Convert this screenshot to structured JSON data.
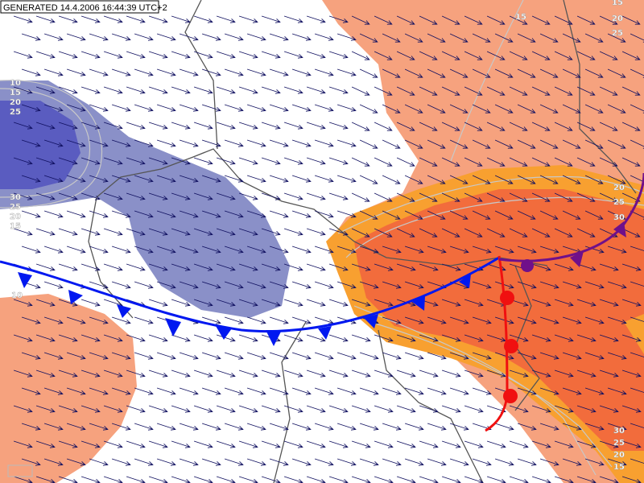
{
  "header": {
    "text": "GENERATED 14.4.2006 16:44:39 UTC+2"
  },
  "contour_labels": [
    15,
    20,
    25,
    15,
    10,
    15,
    20,
    25,
    30,
    25,
    20,
    15,
    10,
    20,
    25,
    30,
    30,
    25,
    20,
    15
  ]
}
